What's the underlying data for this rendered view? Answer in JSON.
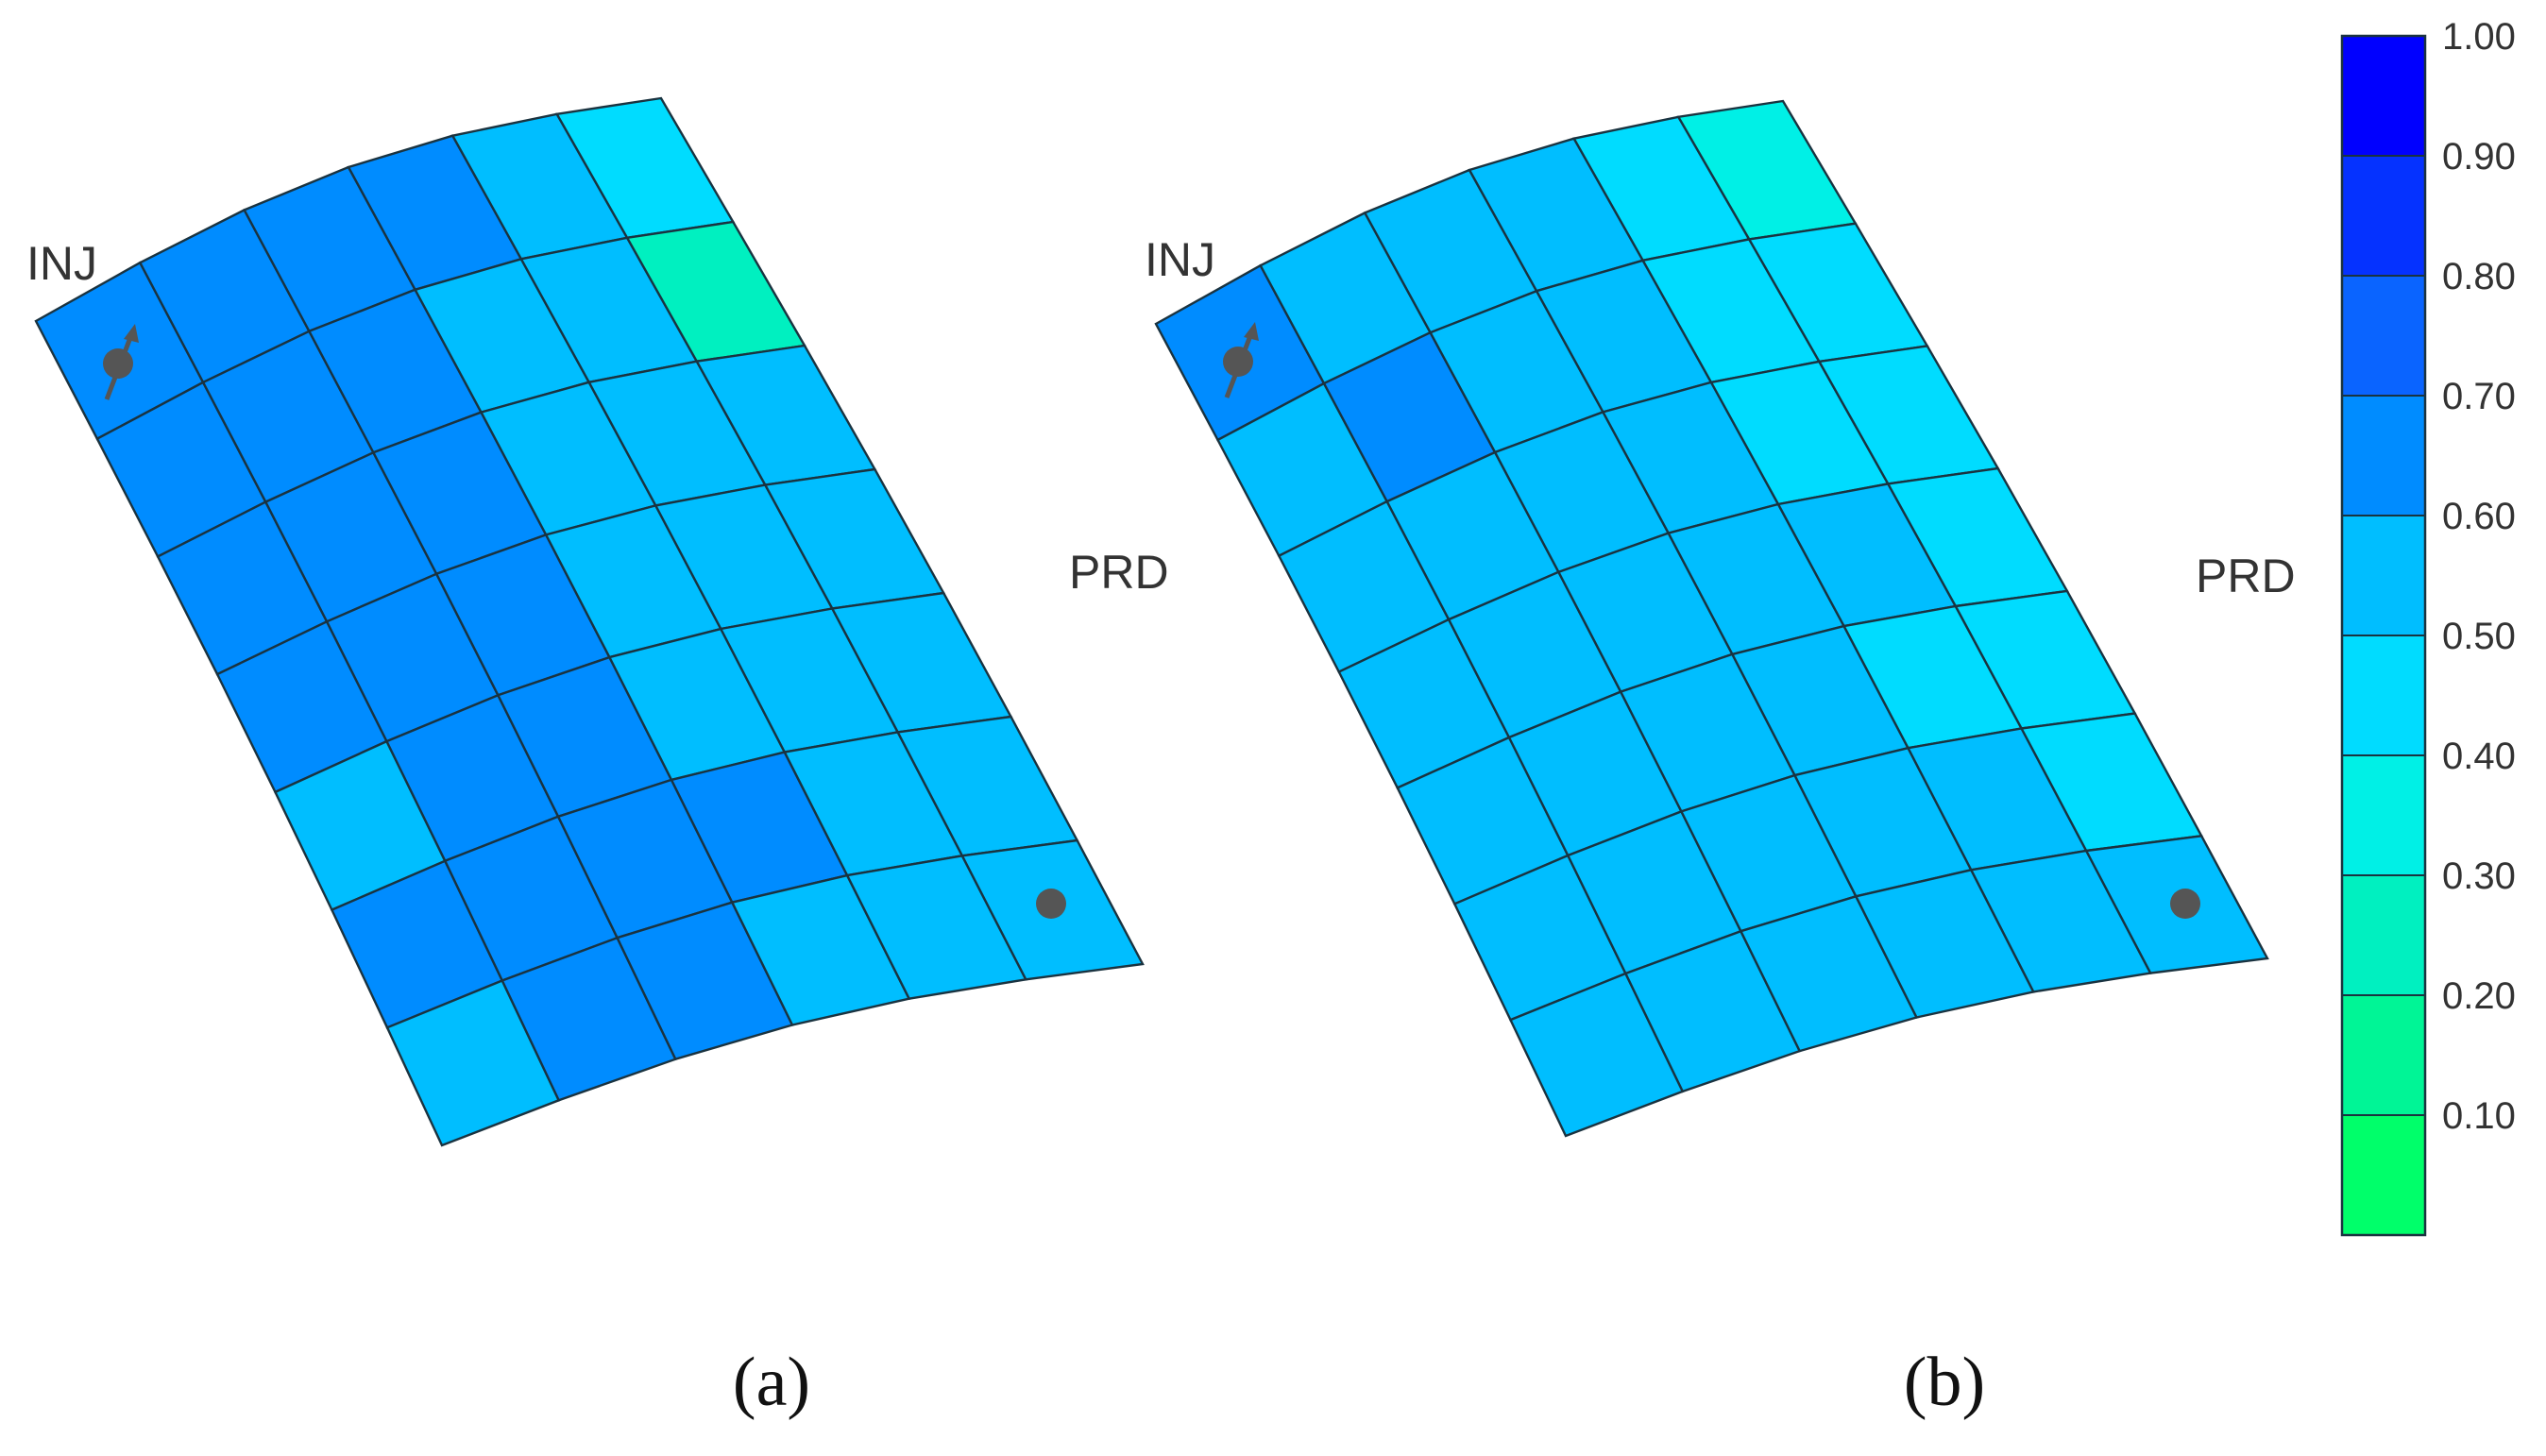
{
  "chart_data": [
    {
      "type": "heatmap",
      "panel_label": "(a)",
      "rows": 7,
      "cols": 6,
      "wells": {
        "injector": "INJ",
        "producer": "PRD"
      },
      "values": [
        [
          0.65,
          0.68,
          0.68,
          0.65,
          0.55,
          0.45
        ],
        [
          0.65,
          0.68,
          0.68,
          0.55,
          0.55,
          0.25
        ],
        [
          0.65,
          0.68,
          0.65,
          0.55,
          0.55,
          0.55
        ],
        [
          0.65,
          0.68,
          0.65,
          0.55,
          0.55,
          0.55
        ],
        [
          0.55,
          0.68,
          0.65,
          0.55,
          0.55,
          0.55
        ],
        [
          0.65,
          0.68,
          0.65,
          0.68,
          0.55,
          0.55
        ],
        [
          0.55,
          0.68,
          0.65,
          0.55,
          0.55,
          0.55
        ]
      ]
    },
    {
      "type": "heatmap",
      "panel_label": "(b)",
      "rows": 7,
      "cols": 6,
      "wells": {
        "injector": "INJ",
        "producer": "PRD"
      },
      "values": [
        [
          0.65,
          0.55,
          0.55,
          0.55,
          0.45,
          0.35
        ],
        [
          0.55,
          0.65,
          0.55,
          0.55,
          0.45,
          0.45
        ],
        [
          0.55,
          0.55,
          0.55,
          0.55,
          0.45,
          0.45
        ],
        [
          0.55,
          0.55,
          0.55,
          0.55,
          0.55,
          0.45
        ],
        [
          0.55,
          0.55,
          0.55,
          0.55,
          0.45,
          0.45
        ],
        [
          0.55,
          0.55,
          0.55,
          0.55,
          0.55,
          0.45
        ],
        [
          0.55,
          0.55,
          0.55,
          0.55,
          0.55,
          0.55
        ]
      ]
    }
  ],
  "colorbar": {
    "ticks": [
      "0.10",
      "0.20",
      "0.30",
      "0.40",
      "0.50",
      "0.60",
      "0.70",
      "0.80",
      "0.90",
      "1.00"
    ],
    "colors": [
      "#00ff6a",
      "#00f596",
      "#00f0c0",
      "#00f0e6",
      "#00dcff",
      "#00beff",
      "#008cff",
      "#0a64ff",
      "#0532ff",
      "#0000ff"
    ]
  }
}
